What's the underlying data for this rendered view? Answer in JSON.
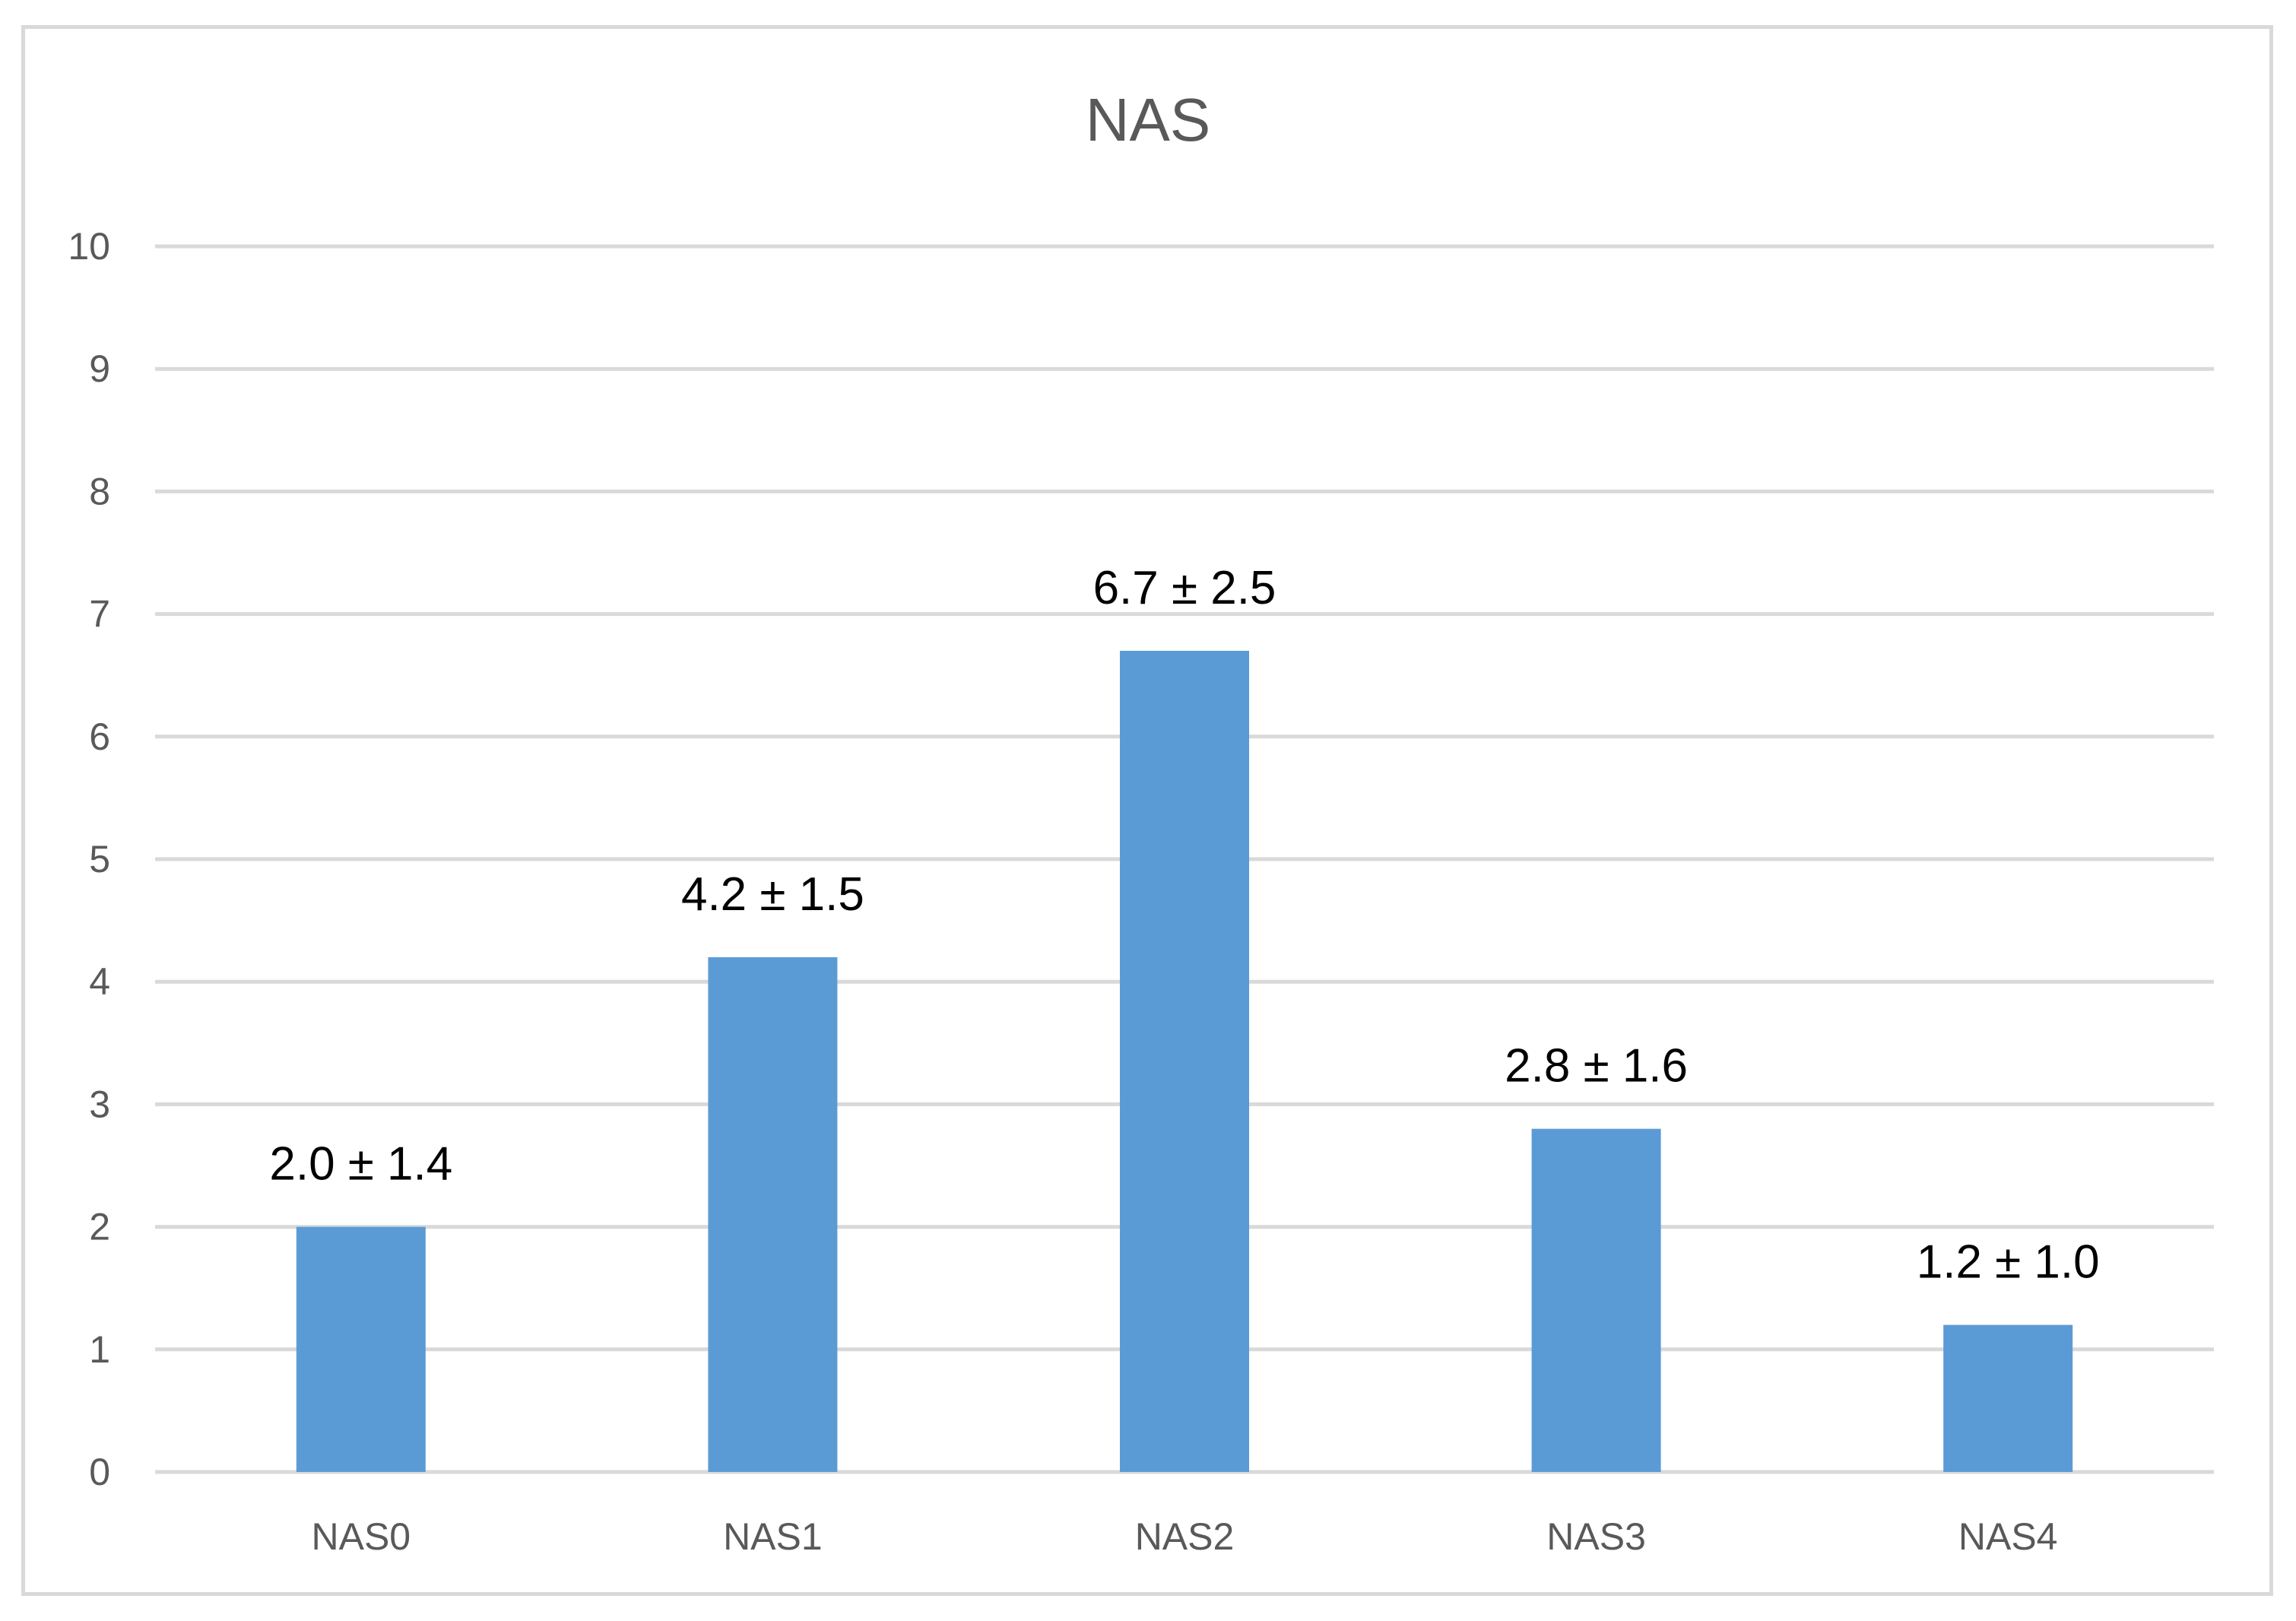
{
  "chart_data": {
    "type": "bar",
    "title": "NAS",
    "xlabel": "",
    "ylabel": "",
    "categories": [
      "NAS0",
      "NAS1",
      "NAS2",
      "NAS3",
      "NAS4"
    ],
    "values": [
      2.0,
      4.2,
      6.7,
      2.8,
      1.2
    ],
    "data_labels": [
      "2.0 ± 1.4",
      "4.2 ± 1.5",
      "6.7 ± 2.5",
      "2.8 ± 1.6",
      "1.2 ± 1.0"
    ],
    "ylim": [
      0,
      10
    ],
    "yticks": [
      "0",
      "1",
      "2",
      "3",
      "4",
      "5",
      "6",
      "7",
      "8",
      "9",
      "10"
    ],
    "grid": true,
    "legend": "none",
    "colors": {
      "bar": "#5b9bd5",
      "grid": "#d9d9d9",
      "axis_text": "#595959",
      "label_text": "#000000",
      "border": "#d9d9d9"
    }
  }
}
